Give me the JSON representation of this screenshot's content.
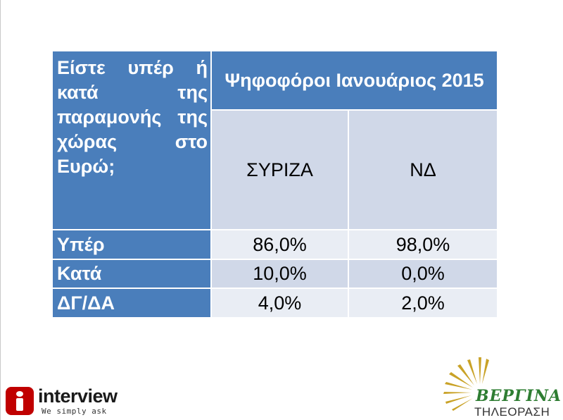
{
  "table": {
    "corner_label": "Είστε υπέρ ή κατά της παραμονής της χώρας στο Ευρώ;",
    "group_header": "Ψηφοφόροι Ιανουάριος 2015",
    "columns": [
      "ΣΥΡΙΖΑ",
      "ΝΔ"
    ],
    "rows": [
      {
        "label": "Υπέρ",
        "values": [
          "86,0%",
          "98,0%"
        ]
      },
      {
        "label": "Κατά",
        "values": [
          "10,0%",
          "0,0%"
        ]
      },
      {
        "label": "ΔΓ/ΔΑ",
        "values": [
          "4,0%",
          "2,0%"
        ]
      }
    ]
  },
  "logos": {
    "interview": {
      "name": "interview",
      "tagline": "We simply ask",
      "icon": "info-i-icon",
      "color": "#c00000"
    },
    "vergina": {
      "name": "ΒΕΡΓΙΝΑ",
      "subtitle": "ΤΗΛΕΟΡΑΣΗ",
      "icon": "vergina-sun-icon",
      "color": "#2e7d32"
    }
  },
  "colors": {
    "header_blue": "#4a7ebb",
    "band_dark": "#d0d8e8",
    "band_light": "#e9edf4"
  }
}
